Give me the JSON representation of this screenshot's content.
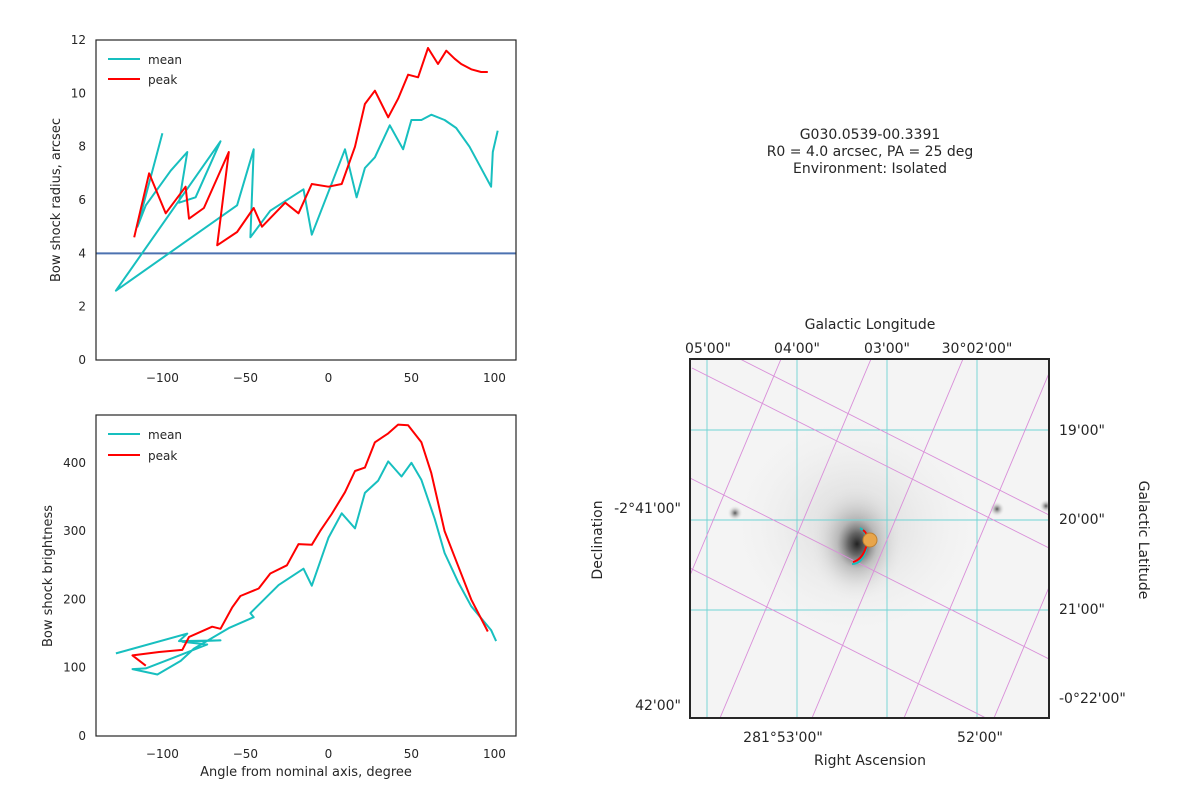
{
  "info": {
    "source_name": "G030.0539-00.3391",
    "params": "R0 = 4.0 arcsec, PA = 25 deg",
    "environment": "Environment: Isolated"
  },
  "colors": {
    "mean": "#17bfbf",
    "peak": "#ff0000",
    "ref_line": "#4c72b0",
    "radec_grid": "#6fd3d3",
    "gal_grid": "#d98fd9"
  },
  "chart_data": [
    {
      "id": "radius",
      "type": "line",
      "xlabel": "",
      "ylabel": "Bow shock radius, arcsec",
      "xlim": [
        -140,
        113
      ],
      "ylim": [
        0,
        12
      ],
      "xticks": [
        -100,
        -50,
        0,
        50,
        100
      ],
      "yticks": [
        0,
        2,
        4,
        6,
        8,
        10,
        12
      ],
      "legend": "top-left",
      "hline": 4.0,
      "series": [
        {
          "name": "mean",
          "x": [
            -100,
            -115,
            -110,
            -95,
            -85,
            -90,
            -80,
            -65,
            -128,
            -55,
            -45,
            -47,
            -35,
            -15,
            -10,
            10,
            17,
            22,
            28,
            37,
            45,
            50,
            56,
            62,
            70,
            77,
            85,
            98,
            99,
            102
          ],
          "y": [
            8.5,
            5.0,
            5.8,
            7.1,
            7.8,
            5.9,
            6.1,
            8.2,
            2.6,
            5.8,
            7.9,
            4.6,
            5.6,
            6.4,
            4.7,
            7.9,
            6.1,
            7.2,
            7.6,
            8.8,
            7.9,
            9.0,
            9.0,
            9.2,
            9.0,
            8.7,
            8.0,
            6.5,
            7.8,
            8.6
          ]
        },
        {
          "name": "peak",
          "x": [
            -117,
            -108,
            -98,
            -86,
            -84,
            -75,
            -60,
            -67,
            -55,
            -45,
            -40,
            -26,
            -18,
            -10,
            0,
            8,
            16,
            22,
            28,
            36,
            42,
            48,
            54,
            60,
            66,
            71,
            76,
            80,
            86,
            92,
            96
          ],
          "y": [
            4.6,
            7.0,
            5.5,
            6.5,
            5.3,
            5.7,
            7.8,
            4.3,
            4.8,
            5.7,
            5.0,
            5.9,
            5.5,
            6.6,
            6.5,
            6.6,
            8.0,
            9.6,
            10.1,
            9.1,
            9.8,
            10.7,
            10.6,
            11.7,
            11.1,
            11.6,
            11.3,
            11.1,
            10.9,
            10.8,
            10.8
          ]
        }
      ]
    },
    {
      "id": "brightness",
      "type": "line",
      "xlabel": "Angle from nominal axis, degree",
      "ylabel": "Bow shock brightness",
      "xlim": [
        -140,
        113
      ],
      "ylim": [
        0,
        470
      ],
      "xticks": [
        -100,
        -50,
        0,
        50,
        100
      ],
      "yticks": [
        0,
        100,
        200,
        300,
        400
      ],
      "legend": "top-left",
      "series": [
        {
          "name": "mean",
          "x": [
            -128,
            -85,
            -90,
            -65,
            -88,
            -73,
            -95,
            -110,
            -118,
            -103,
            -89,
            -81,
            -76,
            -60,
            -45,
            -47,
            -30,
            -15,
            -10,
            0,
            8,
            16,
            22,
            30,
            36,
            44,
            50,
            56,
            64,
            70,
            78,
            86,
            98,
            101
          ],
          "y": [
            121,
            150,
            139,
            140,
            138,
            134,
            113,
            99,
            98,
            90,
            110,
            128,
            135,
            158,
            174,
            180,
            221,
            245,
            220,
            290,
            326,
            304,
            356,
            374,
            402,
            380,
            400,
            375,
            318,
            268,
            226,
            190,
            155,
            139
          ]
        },
        {
          "name": "peak",
          "x": [
            -110,
            -118,
            -102,
            -88,
            -84,
            -70,
            -65,
            -58,
            -53,
            -42,
            -35,
            -25,
            -18,
            -10,
            -5,
            2,
            10,
            16,
            22,
            28,
            36,
            42,
            48,
            56,
            62,
            70,
            78,
            86,
            96
          ],
          "y": [
            103,
            118,
            123,
            126,
            145,
            160,
            157,
            188,
            205,
            216,
            238,
            250,
            281,
            280,
            300,
            325,
            357,
            388,
            393,
            430,
            443,
            456,
            455,
            430,
            385,
            300,
            250,
            200,
            153
          ]
        }
      ]
    }
  ],
  "sky": {
    "top_title": "Galactic Longitude",
    "right_title": "Galactic Latitude",
    "bottom_title": "Right Ascension",
    "left_title": "Declination",
    "top_ticks": [
      "05'00\"",
      "04'00\"",
      "03'00\"",
      "30°02'00\""
    ],
    "right_ticks": [
      "19'00\"",
      "20'00\"",
      "21'00\"",
      "-0°22'00\""
    ],
    "bottom_ticks": [
      "281°53'00\"",
      "52'00\""
    ],
    "left_ticks": [
      "-2°41'00\"",
      "42'00\""
    ]
  }
}
